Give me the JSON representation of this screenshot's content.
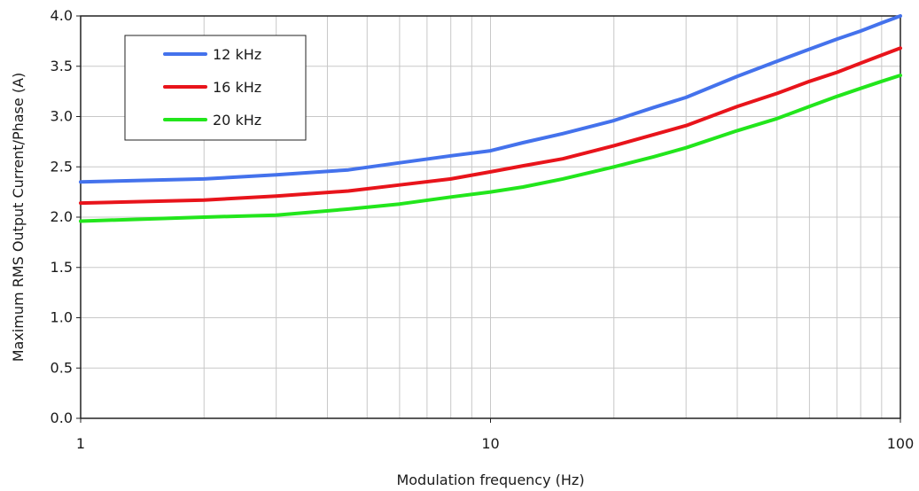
{
  "chart_data": {
    "type": "line",
    "title": "",
    "xlabel": "Modulation frequency (Hz)",
    "ylabel": "Maximum RMS Output Current/Phase (A)",
    "xscale": "log",
    "xlim": [
      1,
      100
    ],
    "ylim": [
      0,
      4
    ],
    "xticks": [
      1,
      10,
      100
    ],
    "xtick_labels": [
      "1",
      "10",
      "100"
    ],
    "yticks": [
      0,
      0.5,
      1,
      1.5,
      2,
      2.5,
      3,
      3.5,
      4
    ],
    "ytick_labels": [
      "0.0",
      "0.5",
      "1.0",
      "1.5",
      "2.0",
      "2.5",
      "3.0",
      "3.5",
      "4.0"
    ],
    "grid": true,
    "legend_position": "top-left",
    "series": [
      {
        "name": "12 kHz",
        "color": "#4472ec",
        "x": [
          1,
          2,
          3,
          4.5,
          6,
          8,
          10,
          12,
          15,
          20,
          25,
          30,
          40,
          50,
          60,
          70,
          80,
          90,
          100
        ],
        "y": [
          2.35,
          2.38,
          2.42,
          2.47,
          2.54,
          2.61,
          2.66,
          2.74,
          2.83,
          2.96,
          3.09,
          3.19,
          3.4,
          3.55,
          3.67,
          3.77,
          3.85,
          3.93,
          4.0
        ]
      },
      {
        "name": "16 kHz",
        "color": "#e8141b",
        "x": [
          1,
          2,
          3,
          4.5,
          6,
          8,
          10,
          12,
          15,
          20,
          25,
          30,
          40,
          50,
          60,
          70,
          80,
          90,
          100
        ],
        "y": [
          2.14,
          2.17,
          2.21,
          2.26,
          2.32,
          2.38,
          2.45,
          2.51,
          2.58,
          2.71,
          2.82,
          2.91,
          3.1,
          3.23,
          3.35,
          3.44,
          3.53,
          3.61,
          3.68
        ]
      },
      {
        "name": "20 kHz",
        "color": "#22e61c",
        "x": [
          1,
          2,
          3,
          4.5,
          6,
          8,
          10,
          12,
          15,
          20,
          25,
          30,
          40,
          50,
          60,
          70,
          80,
          90,
          100
        ],
        "y": [
          1.96,
          2.0,
          2.02,
          2.08,
          2.13,
          2.2,
          2.25,
          2.3,
          2.38,
          2.5,
          2.6,
          2.69,
          2.86,
          2.98,
          3.1,
          3.2,
          3.28,
          3.35,
          3.41
        ]
      }
    ]
  }
}
